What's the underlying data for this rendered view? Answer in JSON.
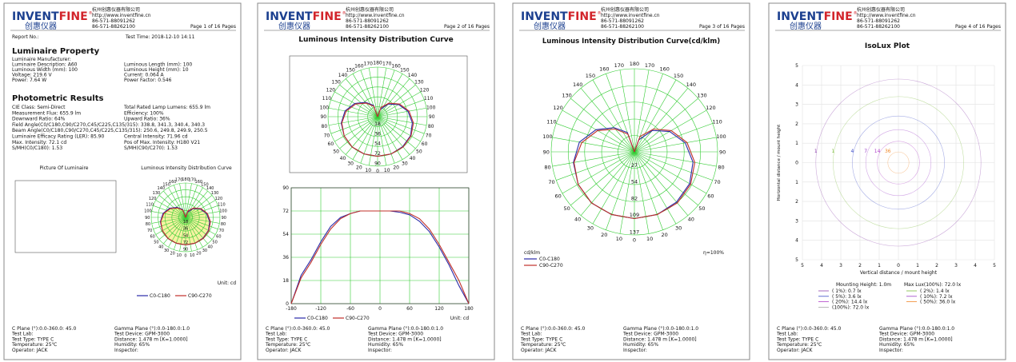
{
  "header": {
    "logo_parts": [
      "INVENT",
      "FINE"
    ],
    "logo_reg": "®",
    "logo_cn": "创惠仪器",
    "company": "杭州创惠仪器有限公司",
    "url": "http://www.inventfine.cn",
    "phone1": "86-571-88091262",
    "phone2": "86-571-88262100"
  },
  "footer": {
    "left": [
      "C Plane (°):0.0-360.0: 45.0",
      "Test Lab:",
      "Test Type: TYPE C",
      "Temperature: 25℃",
      "Operator: JACK"
    ],
    "right": [
      "Gamma Plane (°):0.0-180.0:1.0",
      "Test Device: GPM-3000",
      "Distance: 1.478 m [K=1.0000]",
      "Humidity: 65%",
      "Inspector:"
    ]
  },
  "pages": [
    {
      "page_label": "Page 1 of 16 Pages",
      "report_no": "Report No.:",
      "test_time": "Test Time: 2018-12-10 14:11",
      "property_title": "Luminaire Property",
      "property_rows": [
        [
          "Luminaire Manufacturer:"
        ],
        [
          "Luminaire Description: A60",
          "Luminous Length (mm): 100"
        ],
        [
          "Luminous Width (mm): 100",
          "Luminous Height (mm): 10"
        ],
        [
          "Voltage: 219.6 V",
          "Current: 0.064 A"
        ],
        [
          "Power: 7.64 W",
          "Power Factor: 0.546"
        ]
      ],
      "results_title": "Photometric Results",
      "results_rows": [
        [
          "CIE Class: Semi-Direct",
          "Total Rated Lamp Lumens: 655.9 lm"
        ],
        [
          "Measurement Flux: 655.9 lm",
          "Efficiency: 100%"
        ],
        [
          "Downward Ratio: 64%",
          "Upward Ratio: 36%"
        ],
        [
          "Field Angle(C0/C180,C90/C270,C45/C225,C135/315): 338.8, 341.3, 340.4, 340.3"
        ],
        [
          "Beam Angle(C0/C180,C90/C270,C45/C225,C135/315): 250.6, 249.8, 249.9, 250.5"
        ],
        [
          "Luminaire Efficacy Rating (LER): 85.90",
          "Central Intensity: 71.96 cd"
        ],
        [
          "Max. Intensity: 72.1 cd",
          "Pos of Max. Intensity: H180 V21"
        ],
        [
          "S/MH(C0/C180): 1.53",
          "S/MH(C90/C270): 1.53"
        ]
      ],
      "picture_label": "Picture Of Luminaire",
      "polar": {
        "type": "polar",
        "title": "Luminous Intensity Distribution Curve",
        "unit": "Unit: cd",
        "fill": "#f6f2a2",
        "grid_color": "#33cc33",
        "angle_ticks": [
          0,
          10,
          20,
          30,
          40,
          50,
          60,
          70,
          80,
          90,
          100,
          110,
          120,
          130,
          140,
          150,
          160,
          170,
          180
        ],
        "rlim": [
          0,
          90
        ],
        "rticks": [
          18,
          36,
          54,
          72,
          90
        ],
        "angles": [
          -180,
          -160,
          -140,
          -120,
          -100,
          -80,
          -60,
          -40,
          -20,
          0,
          20,
          40,
          60,
          80,
          100,
          120,
          140,
          160,
          180
        ],
        "series": [
          {
            "name": "C0-C180",
            "color": "#2a2aa8",
            "values": [
              0,
              22,
              34,
              48,
              60,
              67,
              70,
              72,
              72,
              72,
              72,
              71,
              69,
              64,
              56,
              44,
              30,
              14,
              0
            ]
          },
          {
            "name": "C90-C270",
            "color": "#c0302a",
            "values": [
              0,
              20,
              32,
              46,
              58,
              66,
              70,
              72,
              72,
              72,
              72,
              72,
              70,
              66,
              58,
              46,
              32,
              18,
              0
            ]
          }
        ]
      }
    },
    {
      "page_label": "Page 2 of 16 Pages",
      "title": "Luminous Intensity Distribution Curve",
      "polar": {
        "type": "polar",
        "grid_color": "#33cc33",
        "angle_ticks": [
          0,
          10,
          20,
          30,
          40,
          50,
          60,
          70,
          80,
          90,
          100,
          110,
          120,
          130,
          140,
          150,
          160,
          170,
          180
        ],
        "rlim": [
          0,
          90
        ],
        "rticks": [
          18,
          36,
          54,
          72,
          90
        ],
        "angles": [
          -180,
          -160,
          -140,
          -120,
          -100,
          -80,
          -60,
          -40,
          -20,
          0,
          20,
          40,
          60,
          80,
          100,
          120,
          140,
          160,
          180
        ],
        "series": [
          {
            "color": "#2a2aa8",
            "values": [
              0,
              22,
              34,
              48,
              60,
              67,
              70,
              72,
              72,
              72,
              72,
              71,
              69,
              64,
              56,
              44,
              30,
              14,
              0
            ]
          },
          {
            "color": "#c0302a",
            "values": [
              0,
              20,
              32,
              46,
              58,
              66,
              70,
              72,
              72,
              72,
              72,
              72,
              70,
              66,
              58,
              46,
              32,
              18,
              0
            ]
          }
        ]
      },
      "line": {
        "type": "line",
        "unit": "Unit: cd",
        "grid": true,
        "grid_color": "#33cc33",
        "x": [
          -180,
          -160,
          -140,
          -120,
          -100,
          -80,
          -60,
          -40,
          -20,
          0,
          20,
          40,
          60,
          80,
          100,
          120,
          140,
          160,
          180
        ],
        "xlim": [
          -180,
          180
        ],
        "xticks": [
          -180,
          -120,
          -60,
          0,
          60,
          120,
          180
        ],
        "ylim": [
          0,
          90
        ],
        "yticks": [
          0,
          18,
          36,
          54,
          72,
          90
        ],
        "series": [
          {
            "name": "C0-C180",
            "color": "#2a2aa8",
            "values": [
              0,
              22,
              34,
              48,
              60,
              67,
              70,
              72,
              72,
              72,
              72,
              71,
              69,
              64,
              56,
              44,
              30,
              14,
              0
            ]
          },
          {
            "name": "C90-C270",
            "color": "#c0302a",
            "values": [
              0,
              20,
              32,
              46,
              58,
              66,
              70,
              72,
              72,
              72,
              72,
              72,
              70,
              66,
              58,
              46,
              32,
              18,
              0
            ]
          }
        ]
      }
    },
    {
      "page_label": "Page 3 of 16 Pages",
      "title": "Luminous Intensity Distribution Curve(cd/klm)",
      "polar": {
        "type": "polar",
        "unit": "cd/klm",
        "note": "η=100%",
        "grid_color": "#33cc33",
        "angle_ticks": [
          0,
          10,
          20,
          30,
          40,
          50,
          60,
          70,
          80,
          90,
          100,
          110,
          120,
          130,
          140,
          150,
          160,
          170,
          180
        ],
        "rlim": [
          0,
          137
        ],
        "rticks": [
          27,
          54,
          82,
          109,
          137
        ],
        "angles": [
          -180,
          -160,
          -140,
          -120,
          -100,
          -80,
          -60,
          -40,
          -20,
          0,
          20,
          40,
          60,
          80,
          100,
          120,
          140,
          160,
          180
        ],
        "series": [
          {
            "name": "C0-C180",
            "color": "#2a2aa8",
            "values": [
              0,
              34,
              52,
              73,
              92,
              102,
              107,
              110,
              110,
              110,
              110,
              108,
              105,
              98,
              85,
              67,
              46,
              21,
              0
            ]
          },
          {
            "name": "C90-C270",
            "color": "#c0302a",
            "values": [
              0,
              31,
              49,
              70,
              88,
              101,
              107,
              110,
              110,
              110,
              110,
              110,
              107,
              101,
              88,
              70,
              49,
              27,
              0
            ]
          }
        ]
      }
    },
    {
      "page_label": "Page 4 of 16 Pages",
      "title": "IsoLux Plot",
      "isolux": {
        "type": "isolux",
        "xlabel": "Vertical distance / mount height",
        "ylabel": "Horizontal distance / mount height",
        "grid": true,
        "xlim": [
          -5,
          5
        ],
        "ylim": [
          -5,
          5
        ],
        "xticks": [
          {
            "value": -5,
            "label": "5"
          },
          {
            "value": -4,
            "label": "4"
          },
          {
            "value": -3,
            "label": "3"
          },
          {
            "value": -2,
            "label": "2"
          },
          {
            "value": -1,
            "label": "1"
          },
          0,
          1,
          2,
          3,
          4,
          5
        ],
        "yticks": [
          {
            "value": -5,
            "label": "5"
          },
          {
            "value": -4,
            "label": "4"
          },
          {
            "value": -3,
            "label": "3"
          },
          {
            "value": -2,
            "label": "2"
          },
          {
            "value": -1,
            "label": "1"
          },
          0,
          1,
          2,
          3,
          4,
          5
        ],
        "mounting": "Mounting Height: 1.0m",
        "max_lux": "Max Lux(100%): 72.0 lx",
        "contours": [
          {
            "label": "1",
            "legend": "( 1%): 0.7 lx",
            "radius": 4.3,
            "color": "#8e44ad"
          },
          {
            "label": "1",
            "legend": "( 2%): 1.4 lx",
            "radius": 3.4,
            "color": "#7dbb3c"
          },
          {
            "label": "4",
            "legend": "( 5%): 3.6 lx",
            "radius": 2.4,
            "color": "#3b4bc8"
          },
          {
            "label": "7",
            "legend": "( 10%): 7.2 lx",
            "radius": 1.7,
            "color": "#9b3fc8"
          },
          {
            "label": "14",
            "legend": "( 20%): 14.4 lx",
            "radius": 1.1,
            "color": "#b03fc8"
          },
          {
            "label": "36",
            "legend": "( 50%): 36.0 lx",
            "radius": 0.55,
            "color": "#f0892a"
          }
        ],
        "legend_extra": "(100%): 72.0 lx"
      }
    }
  ]
}
